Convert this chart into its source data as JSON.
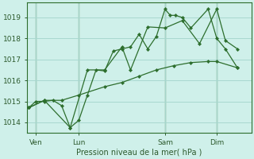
{
  "background_color": "#cff0ea",
  "grid_color": "#a8d8d0",
  "line_color": "#2d6e2d",
  "marker_color": "#2d6e2d",
  "xlabel": "Pression niveau de la mer( hPa )",
  "ylim": [
    1013.5,
    1019.7
  ],
  "yticks": [
    1014,
    1015,
    1016,
    1017,
    1018,
    1019
  ],
  "ytick_labels": [
    "1014",
    "1015",
    "1016",
    "1017",
    "1018",
    "1019"
  ],
  "xtick_labels": [
    "Ven",
    "Lun",
    "Sam",
    "Dim"
  ],
  "xtick_pos": [
    0.5,
    3.0,
    8.0,
    11.0
  ],
  "vline_pos": [
    0.5,
    3.0,
    8.0,
    11.0
  ],
  "xlim": [
    0,
    13.0
  ],
  "series1_x": [
    0.1,
    0.5,
    1.0,
    1.5,
    2.0,
    2.5,
    3.0,
    3.5,
    4.0,
    4.5,
    5.0,
    5.5,
    6.0,
    6.5,
    7.0,
    7.5,
    8.0,
    8.3,
    8.6,
    9.0,
    9.5,
    10.5,
    11.0,
    11.5,
    12.2
  ],
  "series1_y": [
    1014.7,
    1015.0,
    1015.0,
    1015.05,
    1014.8,
    1013.75,
    1014.1,
    1015.3,
    1016.5,
    1016.45,
    1017.4,
    1017.5,
    1017.6,
    1018.2,
    1017.5,
    1018.1,
    1019.4,
    1019.1,
    1019.1,
    1019.0,
    1018.5,
    1019.4,
    1018.0,
    1017.5,
    1016.6
  ],
  "series2_x": [
    0.1,
    1.0,
    2.0,
    3.0,
    4.5,
    5.5,
    6.5,
    7.5,
    8.5,
    9.5,
    10.5,
    11.0,
    12.2
  ],
  "series2_y": [
    1014.7,
    1015.05,
    1015.05,
    1015.3,
    1015.7,
    1015.9,
    1016.2,
    1016.5,
    1016.7,
    1016.85,
    1016.9,
    1016.9,
    1016.6
  ],
  "series3_x": [
    0.1,
    1.0,
    2.5,
    3.5,
    4.5,
    5.5,
    6.0,
    7.0,
    8.0,
    9.0,
    10.0,
    11.0,
    11.5,
    12.2
  ],
  "series3_y": [
    1014.7,
    1015.05,
    1013.75,
    1016.5,
    1016.5,
    1017.6,
    1016.5,
    1018.55,
    1018.5,
    1018.85,
    1017.75,
    1019.4,
    1017.9,
    1017.5
  ]
}
